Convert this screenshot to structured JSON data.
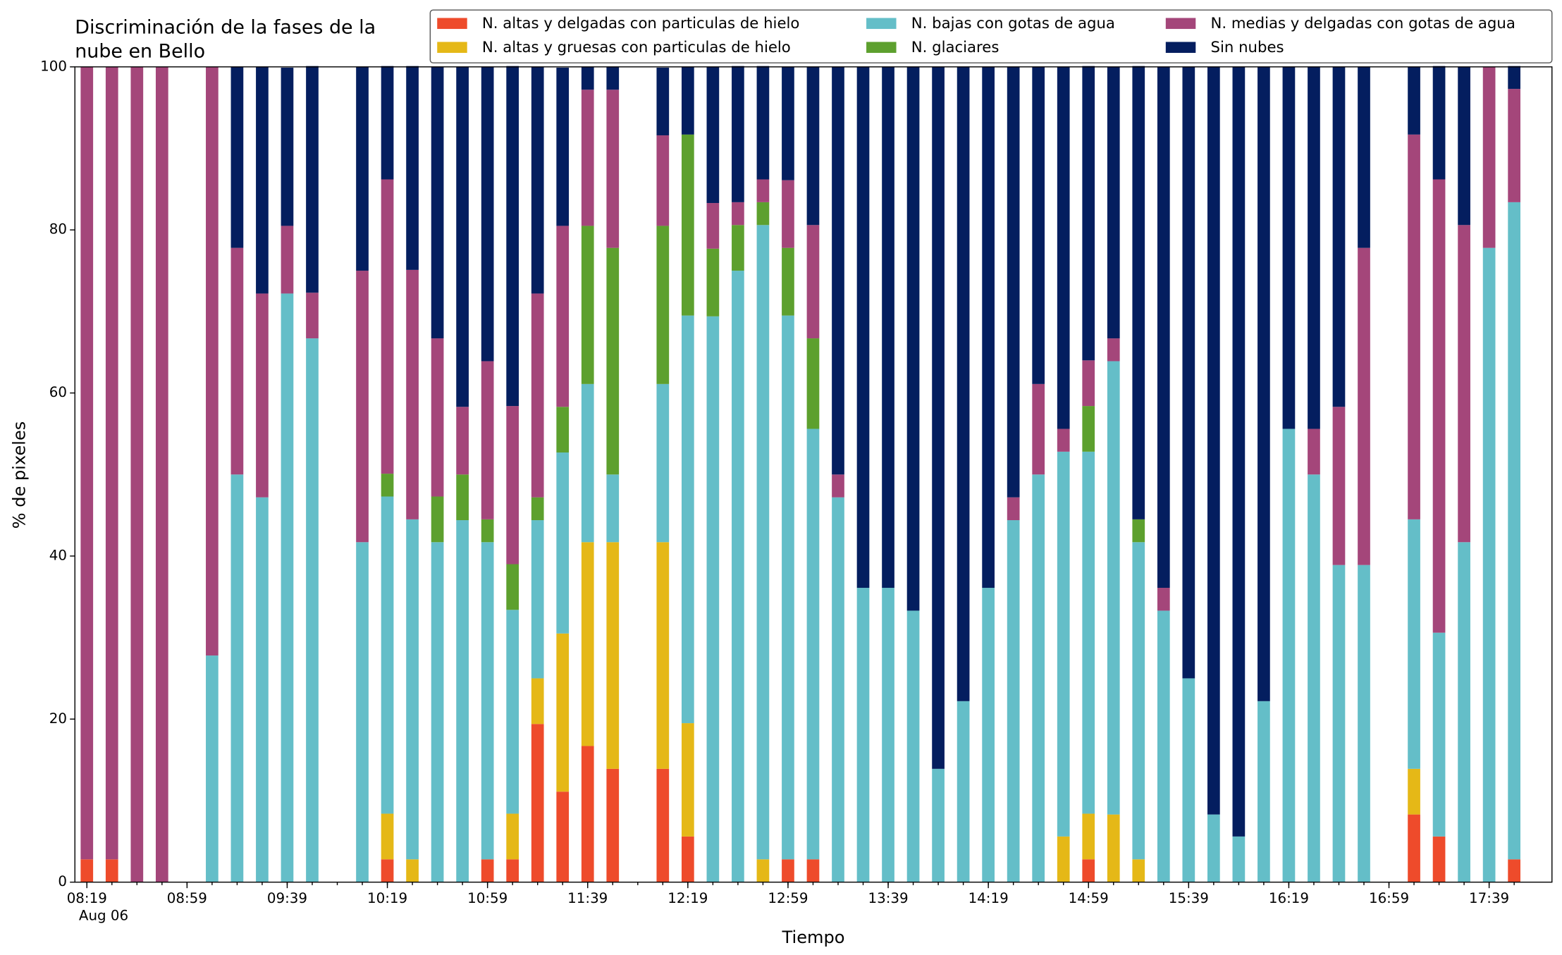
{
  "chart_data": {
    "type": "stacked_bar",
    "title": "Discriminación de la fases de la\nnube en Bello",
    "xlabel": "Tiempo",
    "ylabel": "% de pixeles",
    "date_label": "Aug 06",
    "legend": "upper right",
    "x": [
      "08:19",
      "08:29",
      "08:39",
      "08:49",
      "08:59",
      "09:09",
      "09:19",
      "09:29",
      "09:39",
      "09:49",
      "09:59",
      "10:09",
      "10:19",
      "10:29",
      "10:39",
      "10:49",
      "10:59",
      "11:09",
      "11:19",
      "11:29",
      "11:39",
      "11:49",
      "11:59",
      "12:09",
      "12:19",
      "12:29",
      "12:39",
      "12:49",
      "12:59",
      "13:09",
      "13:19",
      "13:29",
      "13:39",
      "13:49",
      "13:59",
      "14:09",
      "14:19",
      "14:29",
      "14:39",
      "14:49",
      "14:59",
      "15:09",
      "15:19",
      "15:29",
      "15:39",
      "15:49",
      "15:59",
      "16:09",
      "16:19",
      "16:29",
      "16:39",
      "16:49",
      "16:59",
      "17:09",
      "17:19",
      "17:29",
      "17:39",
      "17:49"
    ],
    "xticks": [
      "08:19",
      "08:59",
      "09:39",
      "10:19",
      "10:59",
      "11:39",
      "12:19",
      "12:59",
      "13:39",
      "14:19",
      "14:59",
      "15:39",
      "16:19",
      "16:59",
      "17:39"
    ],
    "ylim": [
      0,
      100
    ],
    "yticks": [
      0,
      20,
      40,
      60,
      80,
      100
    ],
    "series": [
      {
        "name": "N. altas y delgadas con particulas de hielo",
        "color": "#ee4b2b",
        "values": [
          2.8,
          2.8,
          0,
          0,
          null,
          0,
          0,
          0,
          0,
          0,
          null,
          0,
          2.8,
          0,
          0,
          0,
          2.8,
          2.8,
          19.4,
          11.1,
          16.7,
          13.9,
          null,
          13.9,
          5.6,
          0,
          0,
          0,
          2.8,
          2.8,
          0,
          0,
          0,
          0,
          0,
          0,
          0,
          0,
          0,
          0,
          2.8,
          0,
          0,
          0,
          0,
          0,
          0,
          0,
          0,
          0,
          0,
          0,
          null,
          8.3,
          5.6,
          0,
          0,
          2.8
        ]
      },
      {
        "name": "N. altas y gruesas con particulas de hielo",
        "color": "#e5b817",
        "values": [
          0,
          0,
          0,
          0,
          null,
          0,
          0,
          0,
          0,
          0,
          null,
          0,
          5.6,
          2.8,
          0,
          0,
          0,
          5.6,
          5.6,
          19.4,
          25,
          27.8,
          null,
          27.8,
          13.9,
          0,
          0,
          2.8,
          0,
          0,
          0,
          0,
          0,
          0,
          0,
          0,
          0,
          0,
          0,
          5.6,
          5.6,
          8.3,
          2.8,
          0,
          0,
          0,
          0,
          0,
          0,
          0,
          0,
          0,
          null,
          5.6,
          0,
          0,
          0,
          0
        ]
      },
      {
        "name": "N. bajas con gotas de agua",
        "color": "#64bec8",
        "values": [
          0,
          0,
          0,
          0,
          null,
          27.8,
          50,
          47.2,
          72.2,
          66.7,
          null,
          41.7,
          38.9,
          41.7,
          41.7,
          44.4,
          38.9,
          25,
          19.4,
          22.2,
          19.4,
          8.3,
          null,
          19.4,
          50,
          69.4,
          75,
          77.8,
          66.7,
          52.8,
          47.2,
          36.1,
          36.1,
          33.3,
          13.9,
          22.2,
          36.1,
          44.4,
          50,
          47.2,
          44.4,
          55.6,
          38.9,
          33.3,
          25,
          8.3,
          5.6,
          22.2,
          55.6,
          50,
          38.9,
          38.9,
          null,
          30.6,
          25,
          41.7,
          77.8,
          80.6
        ]
      },
      {
        "name": "N. glaciares",
        "color": "#5da02e",
        "values": [
          0,
          0,
          0,
          0,
          null,
          0,
          0,
          0,
          0,
          0,
          null,
          0,
          2.8,
          0,
          5.6,
          5.6,
          2.8,
          5.6,
          2.8,
          5.6,
          19.4,
          27.8,
          null,
          19.4,
          22.2,
          8.3,
          5.6,
          2.8,
          8.3,
          11.1,
          0,
          0,
          0,
          0,
          0,
          0,
          0,
          0,
          0,
          0,
          5.6,
          0,
          2.8,
          0,
          0,
          0,
          0,
          0,
          0,
          0,
          0,
          0,
          null,
          0,
          0,
          0,
          0,
          0
        ]
      },
      {
        "name": "N. medias y delgadas con gotas de agua",
        "color": "#a4467a",
        "values": [
          97.2,
          97.2,
          100,
          100,
          null,
          72.2,
          27.8,
          25,
          8.3,
          5.6,
          null,
          33.3,
          36.1,
          30.6,
          19.4,
          8.3,
          19.4,
          19.4,
          25,
          22.2,
          16.7,
          19.4,
          null,
          11.1,
          0,
          5.6,
          2.8,
          2.8,
          8.3,
          13.9,
          2.8,
          0,
          0,
          0,
          0,
          0,
          0,
          2.8,
          11.1,
          2.8,
          5.6,
          2.8,
          0,
          2.8,
          0,
          0,
          0,
          0,
          0,
          5.6,
          19.4,
          38.9,
          null,
          47.2,
          55.6,
          38.9,
          22.2,
          13.9
        ]
      },
      {
        "name": "Sin nubes",
        "color": "#041e5f",
        "values": [
          0,
          0,
          0,
          0,
          null,
          0,
          22.2,
          27.8,
          19.4,
          27.8,
          null,
          25,
          13.9,
          25,
          33.3,
          41.7,
          36.1,
          41.7,
          27.8,
          19.4,
          2.8,
          2.8,
          null,
          8.3,
          8.3,
          16.7,
          16.7,
          13.9,
          13.9,
          19.4,
          50,
          63.9,
          63.9,
          66.7,
          86.1,
          77.8,
          63.9,
          52.8,
          38.9,
          44.4,
          36.1,
          33.3,
          55.6,
          63.9,
          75,
          91.7,
          94.4,
          77.8,
          44.4,
          44.4,
          41.7,
          22.2,
          null,
          8.3,
          13.9,
          19.4,
          0,
          2.8
        ]
      }
    ]
  }
}
